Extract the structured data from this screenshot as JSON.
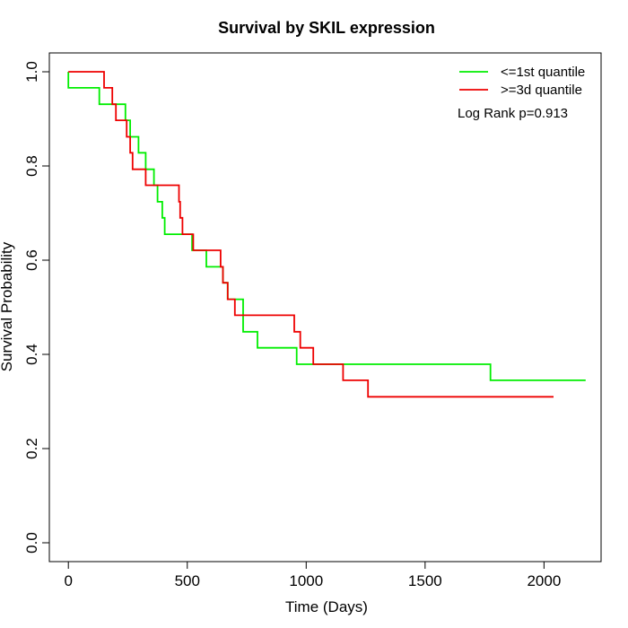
{
  "chart_data": {
    "type": "line",
    "step": true,
    "title": "Survival by SKIL expression",
    "xlabel": "Time (Days)",
    "ylabel": "Survival Probability",
    "xlim": [
      -80,
      2240
    ],
    "ylim": [
      -0.04,
      1.04
    ],
    "xticks": [
      "0",
      "500",
      "1000",
      "1500",
      "2000"
    ],
    "xtick_values": [
      0,
      500,
      1000,
      1500,
      2000
    ],
    "yticks": [
      "0.0",
      "0.2",
      "0.4",
      "0.6",
      "0.8",
      "1.0"
    ],
    "ytick_values": [
      0.0,
      0.2,
      0.4,
      0.6,
      0.8,
      1.0
    ],
    "legend_position": "top-right",
    "annotation": "Log Rank p=0.913",
    "series": [
      {
        "name": "<=1st quantile",
        "color": "#00ee00",
        "x": [
          0,
          0,
          130,
          130,
          185,
          185,
          240,
          240,
          260,
          260,
          295,
          295,
          325,
          325,
          360,
          360,
          375,
          375,
          395,
          395,
          405,
          405,
          520,
          520,
          580,
          580,
          650,
          650,
          670,
          670,
          735,
          735,
          795,
          795,
          960,
          960,
          1775,
          1775,
          2175
        ],
        "y": [
          1.0,
          0.966,
          0.966,
          0.931,
          0.931,
          0.931,
          0.931,
          0.897,
          0.897,
          0.862,
          0.862,
          0.828,
          0.828,
          0.793,
          0.793,
          0.759,
          0.759,
          0.724,
          0.724,
          0.69,
          0.69,
          0.655,
          0.655,
          0.621,
          0.621,
          0.586,
          0.586,
          0.552,
          0.552,
          0.517,
          0.517,
          0.448,
          0.448,
          0.414,
          0.414,
          0.379,
          0.379,
          0.345,
          0.345
        ]
      },
      {
        "name": ">=3d quantile",
        "color": "#ee0000",
        "x": [
          0,
          150,
          150,
          185,
          185,
          200,
          200,
          245,
          245,
          260,
          260,
          270,
          270,
          325,
          325,
          465,
          465,
          470,
          470,
          480,
          480,
          525,
          525,
          640,
          640,
          650,
          650,
          670,
          670,
          700,
          700,
          950,
          950,
          975,
          975,
          1030,
          1030,
          1155,
          1155,
          1260,
          1260,
          2040
        ],
        "y": [
          1.0,
          1.0,
          0.966,
          0.966,
          0.931,
          0.931,
          0.897,
          0.897,
          0.862,
          0.862,
          0.828,
          0.828,
          0.793,
          0.793,
          0.759,
          0.759,
          0.724,
          0.724,
          0.69,
          0.69,
          0.655,
          0.655,
          0.621,
          0.621,
          0.586,
          0.586,
          0.552,
          0.552,
          0.517,
          0.517,
          0.483,
          0.483,
          0.448,
          0.448,
          0.414,
          0.414,
          0.379,
          0.379,
          0.345,
          0.345,
          0.31,
          0.31
        ]
      }
    ]
  }
}
